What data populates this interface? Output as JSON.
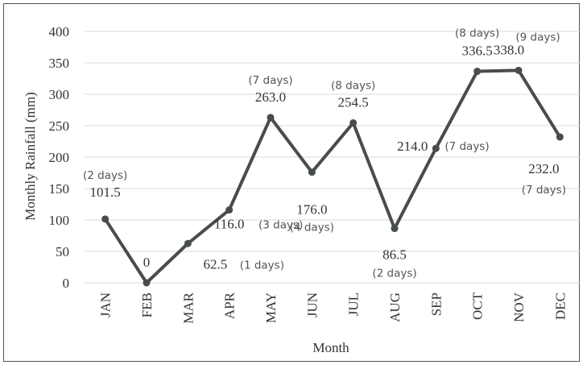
{
  "chart_data": {
    "type": "line",
    "xlabel": "Month",
    "ylabel": "Monthly Rainfall (mm)",
    "ylim": [
      0,
      400
    ],
    "yticks": [
      0,
      50,
      100,
      150,
      200,
      250,
      300,
      350,
      400
    ],
    "grid": true,
    "categories": [
      "JAN",
      "FEB",
      "MAR",
      "APR",
      "MAY",
      "JUN",
      "JUL",
      "AUG",
      "SEP",
      "OCT",
      "NOV",
      "DEC"
    ],
    "series": [
      {
        "values": [
          101.5,
          0,
          62.5,
          116.0,
          263.0,
          176.0,
          254.5,
          86.5,
          214.0,
          336.5,
          338.0,
          232.0
        ],
        "value_labels": [
          "101.5",
          "0",
          "62.5",
          "116.0",
          "263.0",
          "176.0",
          "254.5",
          "86.5",
          "214.0",
          "336.5",
          "338.0",
          "232.0"
        ],
        "day_labels": [
          "(2 days)",
          "",
          "(1 days)",
          "(3 days)",
          "(7 days)",
          "(4 days)",
          "(8 days)",
          "(2 days)",
          "(7 days)",
          "(8 days)",
          "(9 days)",
          "(7 days)"
        ]
      }
    ],
    "colors": {
      "line": "#474d4b",
      "grid": "#d9d9d9",
      "text": "#333333",
      "days_text": "#555555"
    }
  }
}
